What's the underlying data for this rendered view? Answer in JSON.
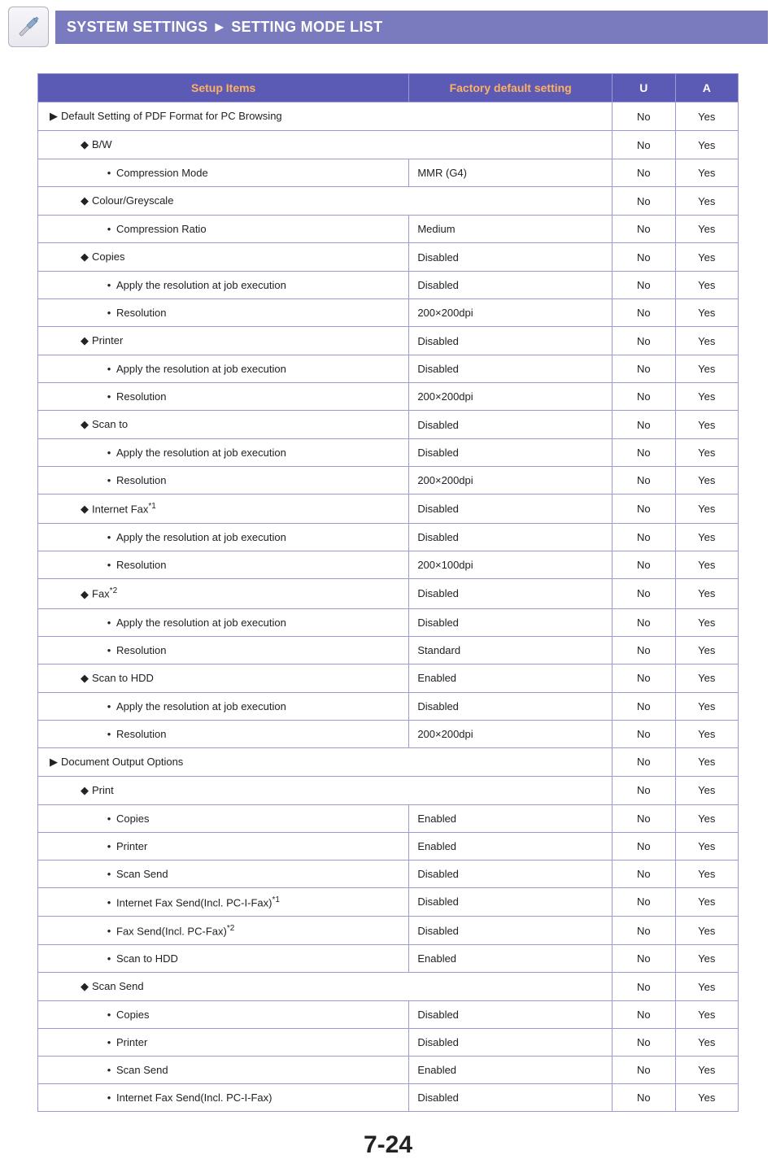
{
  "header": {
    "breadcrumb_left": "SYSTEM SETTINGS",
    "breadcrumb_sep": "►",
    "breadcrumb_right": "SETTING MODE LIST"
  },
  "table": {
    "columns": {
      "items": "Setup Items",
      "default": "Factory default setting",
      "u": "U",
      "a": "A"
    },
    "colors": {
      "header_bg": "#5b5bb6",
      "header_text_orange": "#ffb060",
      "header_text_white": "#ffffff",
      "border": "#9a9ad4",
      "cell_text": "#222222"
    },
    "rows": [
      {
        "indent": 0,
        "mark": "▶",
        "label": "Default Setting of PDF Format for PC Browsing",
        "def": "",
        "span": true,
        "u": "No",
        "a": "Yes"
      },
      {
        "indent": 1,
        "mark": "◆",
        "label": "B/W",
        "def": "",
        "span": true,
        "u": "No",
        "a": "Yes"
      },
      {
        "indent": 2,
        "mark": "•",
        "label": "Compression Mode",
        "def": "MMR (G4)",
        "u": "No",
        "a": "Yes"
      },
      {
        "indent": 1,
        "mark": "◆",
        "label": "Colour/Greyscale",
        "def": "",
        "span": true,
        "u": "No",
        "a": "Yes"
      },
      {
        "indent": 2,
        "mark": "•",
        "label": "Compression Ratio",
        "def": "Medium",
        "u": "No",
        "a": "Yes"
      },
      {
        "indent": 1,
        "mark": "◆",
        "label": "Copies",
        "def": "Disabled",
        "u": "No",
        "a": "Yes"
      },
      {
        "indent": 2,
        "mark": "•",
        "label": "Apply the resolution at job execution",
        "def": "Disabled",
        "u": "No",
        "a": "Yes"
      },
      {
        "indent": 2,
        "mark": "•",
        "label": "Resolution",
        "def": "200×200dpi",
        "u": "No",
        "a": "Yes"
      },
      {
        "indent": 1,
        "mark": "◆",
        "label": "Printer",
        "def": "Disabled",
        "u": "No",
        "a": "Yes"
      },
      {
        "indent": 2,
        "mark": "•",
        "label": "Apply the resolution at job execution",
        "def": "Disabled",
        "u": "No",
        "a": "Yes"
      },
      {
        "indent": 2,
        "mark": "•",
        "label": "Resolution",
        "def": "200×200dpi",
        "u": "No",
        "a": "Yes"
      },
      {
        "indent": 1,
        "mark": "◆",
        "label": "Scan to",
        "def": "Disabled",
        "u": "No",
        "a": "Yes"
      },
      {
        "indent": 2,
        "mark": "•",
        "label": "Apply the resolution at job execution",
        "def": "Disabled",
        "u": "No",
        "a": "Yes"
      },
      {
        "indent": 2,
        "mark": "•",
        "label": "Resolution",
        "def": "200×200dpi",
        "u": "No",
        "a": "Yes"
      },
      {
        "indent": 1,
        "mark": "◆",
        "label": "Internet Fax",
        "sup": "*1",
        "def": "Disabled",
        "u": "No",
        "a": "Yes"
      },
      {
        "indent": 2,
        "mark": "•",
        "label": "Apply the resolution at job execution",
        "def": "Disabled",
        "u": "No",
        "a": "Yes"
      },
      {
        "indent": 2,
        "mark": "•",
        "label": "Resolution",
        "def": "200×100dpi",
        "u": "No",
        "a": "Yes"
      },
      {
        "indent": 1,
        "mark": "◆",
        "label": "Fax",
        "sup": "*2",
        "def": "Disabled",
        "u": "No",
        "a": "Yes"
      },
      {
        "indent": 2,
        "mark": "•",
        "label": "Apply the resolution at job execution",
        "def": "Disabled",
        "u": "No",
        "a": "Yes"
      },
      {
        "indent": 2,
        "mark": "•",
        "label": "Resolution",
        "def": "Standard",
        "u": "No",
        "a": "Yes"
      },
      {
        "indent": 1,
        "mark": "◆",
        "label": "Scan to HDD",
        "def": "Enabled",
        "u": "No",
        "a": "Yes"
      },
      {
        "indent": 2,
        "mark": "•",
        "label": "Apply the resolution at job execution",
        "def": "Disabled",
        "u": "No",
        "a": "Yes"
      },
      {
        "indent": 2,
        "mark": "•",
        "label": "Resolution",
        "def": "200×200dpi",
        "u": "No",
        "a": "Yes"
      },
      {
        "indent": 0,
        "mark": "▶",
        "label": "Document Output Options",
        "def": "",
        "span": true,
        "u": "No",
        "a": "Yes"
      },
      {
        "indent": 1,
        "mark": "◆",
        "label": "Print",
        "def": "",
        "span": true,
        "u": "No",
        "a": "Yes"
      },
      {
        "indent": 2,
        "mark": "•",
        "label": "Copies",
        "def": "Enabled",
        "u": "No",
        "a": "Yes"
      },
      {
        "indent": 2,
        "mark": "•",
        "label": "Printer",
        "def": "Enabled",
        "u": "No",
        "a": "Yes"
      },
      {
        "indent": 2,
        "mark": "•",
        "label": "Scan Send",
        "def": "Disabled",
        "u": "No",
        "a": "Yes"
      },
      {
        "indent": 2,
        "mark": "•",
        "label": "Internet Fax Send(Incl. PC-I-Fax)",
        "sup": "*1",
        "def": "Disabled",
        "u": "No",
        "a": "Yes"
      },
      {
        "indent": 2,
        "mark": "•",
        "label": "Fax Send(Incl. PC-Fax)",
        "sup": "*2",
        "def": "Disabled",
        "u": "No",
        "a": "Yes"
      },
      {
        "indent": 2,
        "mark": "•",
        "label": "Scan to HDD",
        "def": "Enabled",
        "u": "No",
        "a": "Yes"
      },
      {
        "indent": 1,
        "mark": "◆",
        "label": "Scan Send",
        "def": "",
        "span": true,
        "u": "No",
        "a": "Yes"
      },
      {
        "indent": 2,
        "mark": "•",
        "label": "Copies",
        "def": "Disabled",
        "u": "No",
        "a": "Yes"
      },
      {
        "indent": 2,
        "mark": "•",
        "label": "Printer",
        "def": "Disabled",
        "u": "No",
        "a": "Yes"
      },
      {
        "indent": 2,
        "mark": "•",
        "label": "Scan Send",
        "def": "Enabled",
        "u": "No",
        "a": "Yes"
      },
      {
        "indent": 2,
        "mark": "•",
        "label": "Internet Fax Send(Incl. PC-I-Fax)",
        "def": "Disabled",
        "u": "No",
        "a": "Yes"
      }
    ]
  },
  "page_num": "7-24"
}
